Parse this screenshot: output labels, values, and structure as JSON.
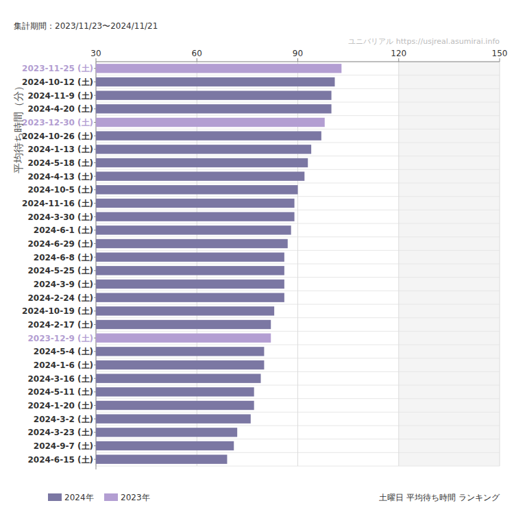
{
  "chart_data": {
    "type": "bar",
    "orientation": "horizontal",
    "title": "土曜日 平均待ち時間 ランキング",
    "subtitle": "集計期間：2023/11/23〜2024/11/21",
    "annotations": [
      "ユニバリアル  https://usjreal.asumirai.info"
    ],
    "y_label": "平均待ち時間（分）",
    "categories": [
      "2023-11-25 (土)",
      "2024-10-12 (土)",
      "2024-11-9 (土)",
      "2024-4-20 (土)",
      "2023-12-30 (土)",
      "2024-10-26 (土)",
      "2024-1-13 (土)",
      "2024-5-18 (土)",
      "2024-4-13 (土)",
      "2024-10-5 (土)",
      "2024-11-16 (土)",
      "2024-3-30 (土)",
      "2024-6-1 (土)",
      "2024-6-29 (土)",
      "2024-6-8 (土)",
      "2024-5-25 (土)",
      "2024-3-9 (土)",
      "2024-2-24 (土)",
      "2024-10-19 (土)",
      "2024-2-17 (土)",
      "2023-12-9 (土)",
      "2024-5-4 (土)",
      "2024-1-6 (土)",
      "2024-3-16 (土)",
      "2024-5-11 (土)",
      "2024-1-20 (土)",
      "2024-3-2 (土)",
      "2024-3-23 (土)",
      "2024-9-7 (土)",
      "2024-6-15 (土)"
    ],
    "series": [
      {
        "name": "2024年",
        "color": "#7b77a3",
        "values": [
          null,
          101,
          100,
          100,
          null,
          97,
          94,
          93,
          92,
          90,
          89,
          89,
          88,
          87,
          86,
          86,
          86,
          86,
          83,
          82,
          null,
          80,
          80,
          79,
          77,
          77,
          76,
          72,
          71,
          69
        ]
      },
      {
        "name": "2023年",
        "color": "#b39ed2",
        "values": [
          103,
          null,
          null,
          null,
          98,
          null,
          null,
          null,
          null,
          null,
          null,
          null,
          null,
          null,
          null,
          null,
          null,
          null,
          null,
          null,
          82,
          null,
          null,
          null,
          null,
          null,
          null,
          null,
          null,
          null
        ]
      }
    ],
    "xlim": [
      30,
      150
    ],
    "xticks": [
      30,
      60,
      90,
      120,
      150
    ],
    "grid": true,
    "legend": "bottom-left"
  }
}
